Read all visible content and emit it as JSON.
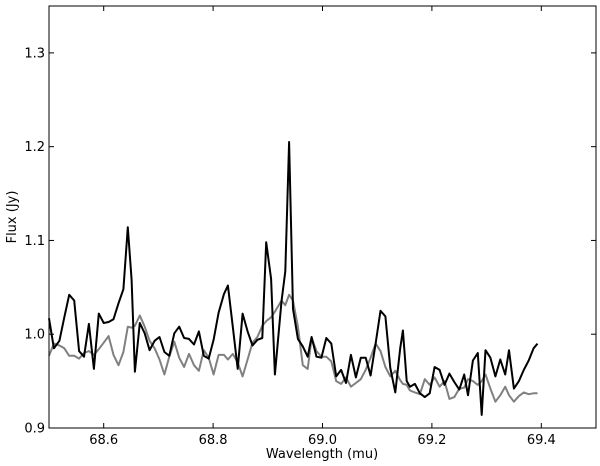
{
  "chart_data": {
    "type": "line",
    "title": "",
    "xlabel": "Wavelength (mu)",
    "ylabel": "Flux (Jy)",
    "xlim": [
      68.5,
      69.5
    ],
    "ylim": [
      0.9,
      1.35
    ],
    "xticks": [
      68.6,
      68.8,
      69.0,
      69.2,
      69.4
    ],
    "xtick_labels": [
      "68.6",
      "68.8",
      "69.0",
      "69.2",
      "69.4"
    ],
    "yticks": [
      0.9,
      1.0,
      1.1,
      1.2,
      1.3
    ],
    "ytick_labels": [
      "0.9",
      "1.0",
      "1.1",
      "1.2",
      "1.3"
    ],
    "grid": false,
    "series": [
      {
        "color": "#000000",
        "points": [
          [
            68.5,
            1.017
          ],
          [
            68.509,
            0.985
          ],
          [
            68.519,
            0.993
          ],
          [
            68.528,
            1.018
          ],
          [
            68.537,
            1.042
          ],
          [
            68.546,
            1.036
          ],
          [
            68.555,
            0.982
          ],
          [
            68.564,
            0.976
          ],
          [
            68.573,
            1.011
          ],
          [
            68.582,
            0.963
          ],
          [
            68.591,
            1.022
          ],
          [
            68.6,
            1.012
          ],
          [
            68.609,
            1.013
          ],
          [
            68.618,
            1.016
          ],
          [
            68.627,
            1.033
          ],
          [
            68.636,
            1.048
          ],
          [
            68.644,
            1.114
          ],
          [
            68.651,
            1.058
          ],
          [
            68.657,
            0.96
          ],
          [
            68.666,
            1.012
          ],
          [
            68.675,
            1.001
          ],
          [
            68.684,
            0.983
          ],
          [
            68.693,
            0.993
          ],
          [
            68.702,
            0.997
          ],
          [
            68.711,
            0.981
          ],
          [
            68.72,
            0.977
          ],
          [
            68.729,
            1.001
          ],
          [
            68.738,
            1.008
          ],
          [
            68.747,
            0.996
          ],
          [
            68.756,
            0.995
          ],
          [
            68.765,
            0.989
          ],
          [
            68.774,
            1.003
          ],
          [
            68.783,
            0.977
          ],
          [
            68.792,
            0.974
          ],
          [
            68.801,
            0.994
          ],
          [
            68.81,
            1.023
          ],
          [
            68.82,
            1.043
          ],
          [
            68.827,
            1.052
          ],
          [
            68.836,
            1.008
          ],
          [
            68.845,
            0.963
          ],
          [
            68.854,
            1.022
          ],
          [
            68.863,
            1.003
          ],
          [
            68.872,
            0.988
          ],
          [
            68.881,
            0.994
          ],
          [
            68.89,
            0.996
          ],
          [
            68.897,
            1.098
          ],
          [
            68.906,
            1.059
          ],
          [
            68.913,
            0.957
          ],
          [
            68.925,
            1.035
          ],
          [
            68.932,
            1.067
          ],
          [
            68.939,
            1.205
          ],
          [
            68.946,
            1.027
          ],
          [
            68.955,
            0.995
          ],
          [
            68.964,
            0.987
          ],
          [
            68.973,
            0.976
          ],
          [
            68.98,
            0.997
          ],
          [
            68.989,
            0.976
          ],
          [
            68.998,
            0.975
          ],
          [
            69.007,
            0.996
          ],
          [
            69.016,
            0.99
          ],
          [
            69.025,
            0.955
          ],
          [
            69.034,
            0.962
          ],
          [
            69.043,
            0.948
          ],
          [
            69.052,
            0.978
          ],
          [
            69.061,
            0.954
          ],
          [
            69.07,
            0.975
          ],
          [
            69.079,
            0.975
          ],
          [
            69.088,
            0.956
          ],
          [
            69.097,
            0.99
          ],
          [
            69.106,
            1.025
          ],
          [
            69.115,
            1.019
          ],
          [
            69.124,
            0.964
          ],
          [
            69.133,
            0.938
          ],
          [
            69.142,
            0.985
          ],
          [
            69.147,
            1.004
          ],
          [
            69.154,
            0.95
          ],
          [
            69.16,
            0.944
          ],
          [
            69.169,
            0.947
          ],
          [
            69.178,
            0.937
          ],
          [
            69.187,
            0.933
          ],
          [
            69.196,
            0.937
          ],
          [
            69.205,
            0.965
          ],
          [
            69.214,
            0.962
          ],
          [
            69.223,
            0.946
          ],
          [
            69.232,
            0.958
          ],
          [
            69.241,
            0.949
          ],
          [
            69.25,
            0.941
          ],
          [
            69.259,
            0.957
          ],
          [
            69.266,
            0.935
          ],
          [
            69.275,
            0.972
          ],
          [
            69.284,
            0.98
          ],
          [
            69.291,
            0.914
          ],
          [
            69.298,
            0.983
          ],
          [
            69.307,
            0.975
          ],
          [
            69.316,
            0.955
          ],
          [
            69.325,
            0.973
          ],
          [
            69.334,
            0.957
          ],
          [
            69.341,
            0.983
          ],
          [
            69.35,
            0.942
          ],
          [
            69.359,
            0.95
          ],
          [
            69.368,
            0.962
          ],
          [
            69.377,
            0.972
          ],
          [
            69.386,
            0.985
          ],
          [
            69.393,
            0.99
          ]
        ]
      },
      {
        "color": "#808080",
        "points": [
          [
            68.5,
            0.977
          ],
          [
            68.509,
            0.99
          ],
          [
            68.519,
            0.988
          ],
          [
            68.528,
            0.985
          ],
          [
            68.537,
            0.977
          ],
          [
            68.546,
            0.977
          ],
          [
            68.555,
            0.974
          ],
          [
            68.564,
            0.98
          ],
          [
            68.573,
            0.982
          ],
          [
            68.582,
            0.978
          ],
          [
            68.591,
            0.984
          ],
          [
            68.6,
            0.991
          ],
          [
            68.609,
            0.998
          ],
          [
            68.618,
            0.978
          ],
          [
            68.627,
            0.967
          ],
          [
            68.636,
            0.981
          ],
          [
            68.644,
            1.008
          ],
          [
            68.651,
            1.007
          ],
          [
            68.657,
            1.009
          ],
          [
            68.666,
            1.02
          ],
          [
            68.675,
            1.008
          ],
          [
            68.684,
            0.993
          ],
          [
            68.693,
            0.985
          ],
          [
            68.702,
            0.973
          ],
          [
            68.711,
            0.957
          ],
          [
            68.72,
            0.976
          ],
          [
            68.729,
            0.992
          ],
          [
            68.738,
            0.975
          ],
          [
            68.747,
            0.965
          ],
          [
            68.756,
            0.979
          ],
          [
            68.765,
            0.967
          ],
          [
            68.774,
            0.961
          ],
          [
            68.783,
            0.983
          ],
          [
            68.792,
            0.975
          ],
          [
            68.801,
            0.957
          ],
          [
            68.81,
            0.978
          ],
          [
            68.82,
            0.978
          ],
          [
            68.827,
            0.973
          ],
          [
            68.836,
            0.979
          ],
          [
            68.845,
            0.97
          ],
          [
            68.854,
            0.955
          ],
          [
            68.863,
            0.973
          ],
          [
            68.872,
            0.991
          ],
          [
            68.881,
            0.997
          ],
          [
            68.89,
            1.009
          ],
          [
            68.897,
            1.014
          ],
          [
            68.906,
            1.018
          ],
          [
            68.913,
            1.024
          ],
          [
            68.925,
            1.036
          ],
          [
            68.932,
            1.031
          ],
          [
            68.939,
            1.042
          ],
          [
            68.946,
            1.036
          ],
          [
            68.955,
            1.008
          ],
          [
            68.964,
            0.967
          ],
          [
            68.973,
            0.963
          ],
          [
            68.98,
            0.996
          ],
          [
            68.989,
            0.982
          ],
          [
            68.998,
            0.976
          ],
          [
            69.007,
            0.976
          ],
          [
            69.016,
            0.971
          ],
          [
            69.025,
            0.95
          ],
          [
            69.034,
            0.947
          ],
          [
            69.043,
            0.954
          ],
          [
            69.052,
            0.944
          ],
          [
            69.061,
            0.948
          ],
          [
            69.07,
            0.952
          ],
          [
            69.079,
            0.962
          ],
          [
            69.088,
            0.975
          ],
          [
            69.097,
            0.99
          ],
          [
            69.106,
            0.982
          ],
          [
            69.115,
            0.965
          ],
          [
            69.124,
            0.955
          ],
          [
            69.133,
            0.961
          ],
          [
            69.142,
            0.951
          ],
          [
            69.147,
            0.947
          ],
          [
            69.154,
            0.946
          ],
          [
            69.16,
            0.94
          ],
          [
            69.169,
            0.938
          ],
          [
            69.178,
            0.936
          ],
          [
            69.187,
            0.952
          ],
          [
            69.196,
            0.946
          ],
          [
            69.205,
            0.954
          ],
          [
            69.214,
            0.944
          ],
          [
            69.223,
            0.95
          ],
          [
            69.232,
            0.931
          ],
          [
            69.241,
            0.933
          ],
          [
            69.25,
            0.942
          ],
          [
            69.259,
            0.943
          ],
          [
            69.266,
            0.952
          ],
          [
            69.275,
            0.95
          ],
          [
            69.284,
            0.946
          ],
          [
            69.291,
            0.95
          ],
          [
            69.298,
            0.957
          ],
          [
            69.307,
            0.942
          ],
          [
            69.316,
            0.928
          ],
          [
            69.325,
            0.935
          ],
          [
            69.334,
            0.944
          ],
          [
            69.341,
            0.935
          ],
          [
            69.35,
            0.928
          ],
          [
            69.359,
            0.934
          ],
          [
            69.368,
            0.938
          ],
          [
            69.377,
            0.936
          ],
          [
            69.386,
            0.937
          ],
          [
            69.393,
            0.937
          ]
        ]
      }
    ]
  }
}
